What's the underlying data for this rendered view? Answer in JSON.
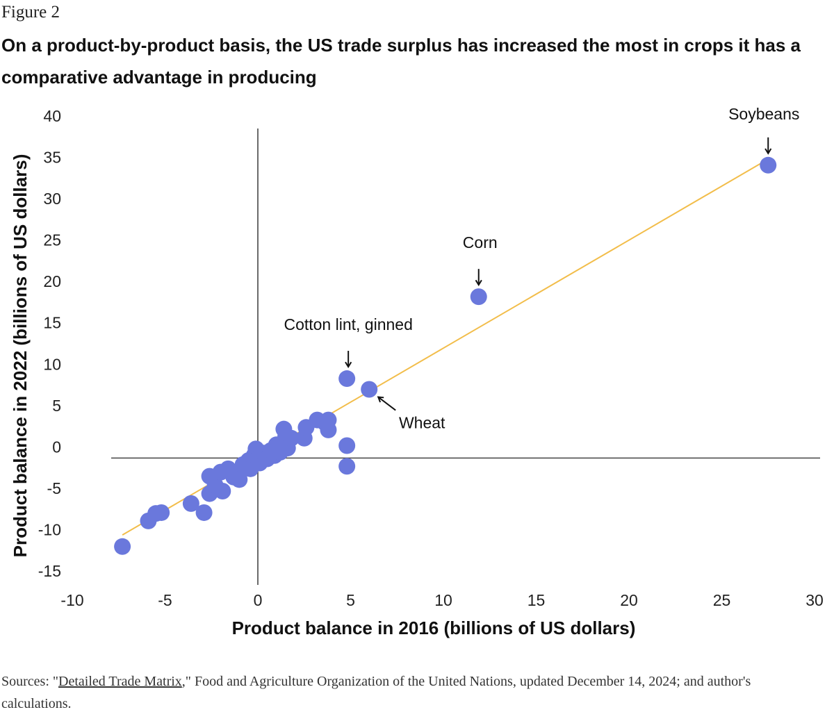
{
  "figure_label": "Figure 2",
  "title": "On a product-by-product basis, the US trade surplus has increased the most in crops it has a comparative advantage in producing",
  "sources": {
    "prefix": "Sources: \"",
    "link_text": "Detailed Trade Matrix",
    "suffix": ",\" Food and Agriculture Organization of the United Nations, updated December 14, 2024; and author's calculations."
  },
  "colors": {
    "points": "#6a78dc",
    "trendline": "#f2bd4a",
    "axes": "#444444"
  },
  "chart_data": {
    "type": "scatter",
    "xlabel": "Product balance in 2016 (billions of US dollars)",
    "ylabel": "Product balance in 2022 (billions of US dollars)",
    "xlim": [
      -10,
      30
    ],
    "ylim": [
      -15,
      40
    ],
    "xticks": [
      -10,
      -5,
      0,
      5,
      10,
      15,
      20,
      25,
      30
    ],
    "yticks": [
      -15,
      -10,
      -5,
      0,
      5,
      10,
      15,
      20,
      25,
      30,
      35,
      40
    ],
    "grid": false,
    "trendline": {
      "x": [
        -7.3,
        27.4
      ],
      "y": [
        -9.3,
        36.0
      ]
    },
    "points": [
      {
        "x": 27.5,
        "y": 35.4,
        "label": "Soybeans"
      },
      {
        "x": 11.9,
        "y": 19.5,
        "label": "Corn"
      },
      {
        "x": 4.8,
        "y": 9.6,
        "label": "Cotton lint, ginned"
      },
      {
        "x": 6.0,
        "y": 8.3,
        "label": "Wheat"
      },
      {
        "x": -7.3,
        "y": -10.7
      },
      {
        "x": -5.9,
        "y": -7.6
      },
      {
        "x": -5.5,
        "y": -6.7
      },
      {
        "x": -5.2,
        "y": -6.6
      },
      {
        "x": -3.6,
        "y": -5.5
      },
      {
        "x": -2.9,
        "y": -6.6
      },
      {
        "x": -2.6,
        "y": -4.3
      },
      {
        "x": -2.6,
        "y": -2.2
      },
      {
        "x": -2.3,
        "y": -3.3
      },
      {
        "x": -2.0,
        "y": -1.7
      },
      {
        "x": -1.9,
        "y": -4.0
      },
      {
        "x": -1.6,
        "y": -1.3
      },
      {
        "x": -1.3,
        "y": -2.3
      },
      {
        "x": -1.0,
        "y": -2.6
      },
      {
        "x": -0.8,
        "y": -0.8
      },
      {
        "x": -0.5,
        "y": -0.3
      },
      {
        "x": -0.4,
        "y": -1.3
      },
      {
        "x": -0.2,
        "y": 0.3
      },
      {
        "x": -0.1,
        "y": 1.1
      },
      {
        "x": 0.0,
        "y": 0.0
      },
      {
        "x": 0.1,
        "y": -0.6
      },
      {
        "x": 0.3,
        "y": 0.6
      },
      {
        "x": 0.5,
        "y": -0.1
      },
      {
        "x": 0.7,
        "y": 0.9
      },
      {
        "x": 0.9,
        "y": 0.3
      },
      {
        "x": 1.0,
        "y": 1.6
      },
      {
        "x": 1.2,
        "y": 0.7
      },
      {
        "x": 1.4,
        "y": 1.9
      },
      {
        "x": 1.4,
        "y": 3.5
      },
      {
        "x": 1.5,
        "y": 2.6
      },
      {
        "x": 1.6,
        "y": 1.2
      },
      {
        "x": 1.8,
        "y": 2.4
      },
      {
        "x": 2.5,
        "y": 2.4
      },
      {
        "x": 2.6,
        "y": 3.7
      },
      {
        "x": 3.2,
        "y": 4.6
      },
      {
        "x": 3.6,
        "y": 4.3
      },
      {
        "x": 3.8,
        "y": 4.6
      },
      {
        "x": 3.8,
        "y": 3.4
      },
      {
        "x": 4.8,
        "y": 1.5
      },
      {
        "x": 4.8,
        "y": -1.0
      }
    ]
  }
}
